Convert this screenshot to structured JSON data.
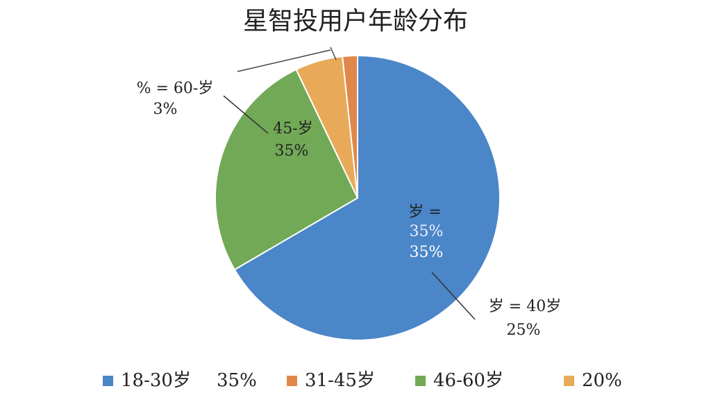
{
  "chart_data": {
    "type": "pie",
    "title": "星智投用户年龄分布",
    "categories": [
      "18-30岁",
      "46-60岁",
      "20%",
      "31-45岁"
    ],
    "values": [
      66.6,
      26.3,
      5.4,
      1.7
    ],
    "colors": [
      "#4a86c8",
      "#72a956",
      "#e8aa58",
      "#e0874a"
    ],
    "annotations": [
      "% = 60-岁",
      "3%",
      "45-岁",
      "35%",
      "岁 =",
      "35%",
      "35%",
      "岁 = 40岁",
      "25%",
      "35%"
    ]
  }
}
